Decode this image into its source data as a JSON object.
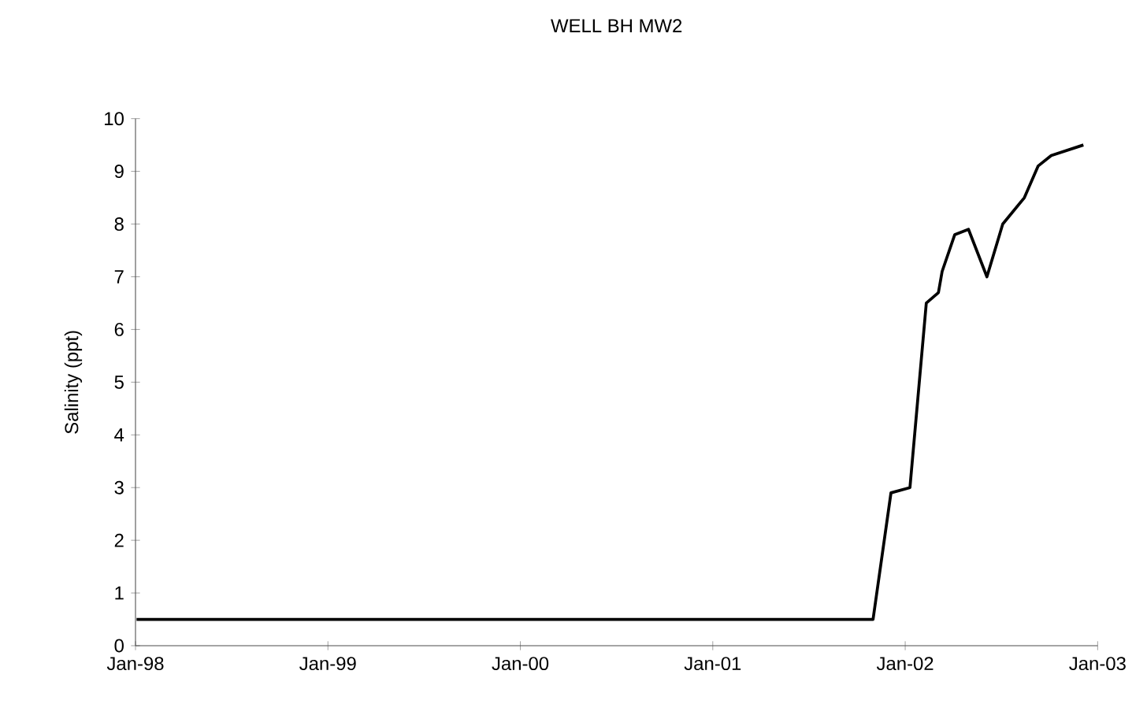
{
  "chart_data": {
    "type": "line",
    "title": "WELL BH MW2",
    "ylabel": "Salinity (ppt)",
    "x": [
      "1998-01-03",
      "2001-11-01",
      "2001-12-05",
      "2002-01-10",
      "2002-02-10",
      "2002-03-05",
      "2002-03-12",
      "2002-04-05",
      "2002-05-01",
      "2002-06-05",
      "2002-07-05",
      "2002-08-15",
      "2002-09-10",
      "2002-10-05",
      "2002-12-05"
    ],
    "series": [
      {
        "color": "#000000",
        "values": [
          0.5,
          0.5,
          2.9,
          3.0,
          6.5,
          6.7,
          7.1,
          7.8,
          7.9,
          7.0,
          8.0,
          8.5,
          9.1,
          9.3,
          9.5
        ]
      }
    ],
    "xlim": [
      "1998-01",
      "2003-01"
    ],
    "xticks": [
      {
        "value": "1998-01",
        "label": "Jan-98"
      },
      {
        "value": "1999-01",
        "label": "Jan-99"
      },
      {
        "value": "2000-01",
        "label": "Jan-00"
      },
      {
        "value": "2001-01",
        "label": "Jan-01"
      },
      {
        "value": "2002-01",
        "label": "Jan-02"
      },
      {
        "value": "2003-01",
        "label": "Jan-03"
      }
    ],
    "ylim": [
      0,
      10
    ],
    "yticks": [
      0,
      1,
      2,
      3,
      4,
      5,
      6,
      7,
      8,
      9,
      10
    ],
    "grid": false,
    "marker": "none",
    "line_style": "solid"
  }
}
